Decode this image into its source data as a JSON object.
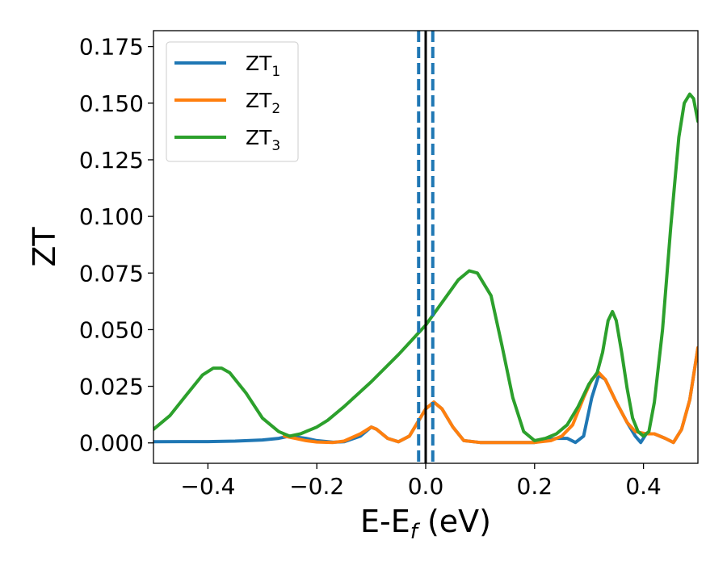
{
  "chart_data": {
    "type": "line",
    "title": "",
    "xlabel": "E-E",
    "xlabel_sub": "f",
    "xlabel_unit": " (eV)",
    "ylabel": "ZT",
    "xlim": [
      -0.5,
      0.5
    ],
    "ylim": [
      -0.009,
      0.182
    ],
    "xticks": [
      -0.4,
      -0.2,
      0.0,
      0.2,
      0.4
    ],
    "xtick_labels": [
      "−0.4",
      "−0.2",
      "0.0",
      "0.2",
      "0.4"
    ],
    "yticks": [
      0.0,
      0.025,
      0.05,
      0.075,
      0.1,
      0.125,
      0.15,
      0.175
    ],
    "ytick_labels": [
      "0.000",
      "0.025",
      "0.050",
      "0.075",
      "0.100",
      "0.125",
      "0.150",
      "0.175"
    ],
    "grid": false,
    "legend_position": "top-left",
    "vertical_lines": [
      {
        "x": 0.0,
        "color": "#000000",
        "style": "solid"
      },
      {
        "x": -0.013,
        "color": "#1f77b4",
        "style": "dashed"
      },
      {
        "x": 0.013,
        "color": "#1f77b4",
        "style": "dashed"
      }
    ],
    "series": [
      {
        "name": "ZT",
        "sub": "1",
        "color": "#1f77b4",
        "points": [
          [
            -0.5,
            0.0005
          ],
          [
            -0.45,
            0.0006
          ],
          [
            -0.4,
            0.0006
          ],
          [
            -0.35,
            0.0008
          ],
          [
            -0.3,
            0.0013
          ],
          [
            -0.27,
            0.002
          ],
          [
            -0.25,
            0.003
          ],
          [
            -0.22,
            0.002
          ],
          [
            -0.2,
            0.001
          ],
          [
            -0.17,
            0.0003
          ],
          [
            -0.15,
            0.0005
          ],
          [
            -0.12,
            0.003
          ],
          [
            -0.1,
            0.007
          ],
          [
            -0.09,
            0.006
          ],
          [
            -0.07,
            0.002
          ],
          [
            -0.05,
            0.0005
          ],
          [
            -0.03,
            0.003
          ],
          [
            -0.01,
            0.011
          ],
          [
            0.0,
            0.015
          ],
          [
            0.015,
            0.018
          ],
          [
            0.03,
            0.015
          ],
          [
            0.05,
            0.007
          ],
          [
            0.07,
            0.001
          ],
          [
            0.1,
            0.0002
          ],
          [
            0.15,
            0.0002
          ],
          [
            0.2,
            0.0002
          ],
          [
            0.24,
            0.002
          ],
          [
            0.26,
            0.002
          ],
          [
            0.275,
            0.0002
          ],
          [
            0.29,
            0.003
          ],
          [
            0.305,
            0.02
          ],
          [
            0.318,
            0.03
          ],
          [
            0.33,
            0.028
          ],
          [
            0.35,
            0.018
          ],
          [
            0.37,
            0.009
          ],
          [
            0.385,
            0.003
          ],
          [
            0.395,
            0.0002
          ],
          [
            0.405,
            0.004
          ],
          [
            0.42,
            0.004
          ],
          [
            0.44,
            0.002
          ],
          [
            0.455,
            0.0002
          ],
          [
            0.47,
            0.006
          ],
          [
            0.485,
            0.019
          ],
          [
            0.5,
            0.042
          ]
        ]
      },
      {
        "name": "ZT",
        "sub": "2",
        "color": "#ff7f0e",
        "points": [
          [
            -0.26,
            0.003
          ],
          [
            -0.24,
            0.002
          ],
          [
            -0.22,
            0.001
          ],
          [
            -0.2,
            0.0004
          ],
          [
            -0.17,
            0.0002
          ],
          [
            -0.15,
            0.0008
          ],
          [
            -0.12,
            0.004
          ],
          [
            -0.1,
            0.007
          ],
          [
            -0.09,
            0.006
          ],
          [
            -0.07,
            0.002
          ],
          [
            -0.05,
            0.0005
          ],
          [
            -0.03,
            0.003
          ],
          [
            -0.01,
            0.011
          ],
          [
            0.0,
            0.015
          ],
          [
            0.015,
            0.018
          ],
          [
            0.03,
            0.015
          ],
          [
            0.05,
            0.007
          ],
          [
            0.07,
            0.001
          ],
          [
            0.1,
            0.0002
          ],
          [
            0.15,
            0.0002
          ],
          [
            0.2,
            0.0002
          ],
          [
            0.23,
            0.001
          ],
          [
            0.25,
            0.003
          ],
          [
            0.27,
            0.008
          ],
          [
            0.29,
            0.02
          ],
          [
            0.305,
            0.028
          ],
          [
            0.318,
            0.031
          ],
          [
            0.33,
            0.028
          ],
          [
            0.35,
            0.018
          ],
          [
            0.37,
            0.009
          ],
          [
            0.385,
            0.005
          ],
          [
            0.405,
            0.004
          ],
          [
            0.42,
            0.004
          ],
          [
            0.44,
            0.002
          ],
          [
            0.455,
            0.0002
          ],
          [
            0.47,
            0.006
          ],
          [
            0.485,
            0.019
          ],
          [
            0.5,
            0.042
          ]
        ]
      },
      {
        "name": "ZT",
        "sub": "3",
        "color": "#2ca02c",
        "points": [
          [
            -0.5,
            0.006
          ],
          [
            -0.47,
            0.012
          ],
          [
            -0.44,
            0.021
          ],
          [
            -0.41,
            0.03
          ],
          [
            -0.39,
            0.033
          ],
          [
            -0.375,
            0.033
          ],
          [
            -0.36,
            0.031
          ],
          [
            -0.33,
            0.022
          ],
          [
            -0.3,
            0.011
          ],
          [
            -0.27,
            0.005
          ],
          [
            -0.25,
            0.003
          ],
          [
            -0.23,
            0.004
          ],
          [
            -0.2,
            0.007
          ],
          [
            -0.18,
            0.01
          ],
          [
            -0.15,
            0.016
          ],
          [
            -0.1,
            0.027
          ],
          [
            -0.05,
            0.039
          ],
          [
            0.0,
            0.052
          ],
          [
            0.03,
            0.062
          ],
          [
            0.06,
            0.072
          ],
          [
            0.08,
            0.076
          ],
          [
            0.095,
            0.075
          ],
          [
            0.12,
            0.065
          ],
          [
            0.14,
            0.043
          ],
          [
            0.16,
            0.02
          ],
          [
            0.18,
            0.005
          ],
          [
            0.2,
            0.001
          ],
          [
            0.22,
            0.002
          ],
          [
            0.24,
            0.004
          ],
          [
            0.26,
            0.008
          ],
          [
            0.28,
            0.016
          ],
          [
            0.3,
            0.026
          ],
          [
            0.315,
            0.031
          ],
          [
            0.325,
            0.04
          ],
          [
            0.335,
            0.054
          ],
          [
            0.343,
            0.058
          ],
          [
            0.35,
            0.054
          ],
          [
            0.36,
            0.04
          ],
          [
            0.37,
            0.024
          ],
          [
            0.38,
            0.011
          ],
          [
            0.39,
            0.005
          ],
          [
            0.4,
            0.003
          ],
          [
            0.41,
            0.005
          ],
          [
            0.42,
            0.018
          ],
          [
            0.435,
            0.05
          ],
          [
            0.45,
            0.095
          ],
          [
            0.465,
            0.135
          ],
          [
            0.475,
            0.15
          ],
          [
            0.485,
            0.154
          ],
          [
            0.492,
            0.152
          ],
          [
            0.5,
            0.142
          ]
        ]
      }
    ]
  }
}
